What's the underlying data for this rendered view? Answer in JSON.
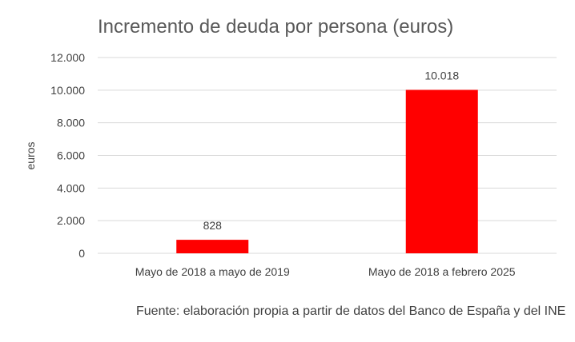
{
  "chart_data": {
    "type": "bar",
    "title": "Incremento de deuda por persona (euros)",
    "xlabel": "",
    "ylabel": "euros",
    "categories": [
      "Mayo de 2018 a mayo de 2019",
      "Mayo de 2018 a febrero 2025"
    ],
    "values": [
      828,
      10018
    ],
    "data_labels": [
      "828",
      "10.018"
    ],
    "ylim": [
      0,
      12000
    ],
    "yticks": [
      0,
      2000,
      4000,
      6000,
      8000,
      10000,
      12000
    ],
    "ytick_labels": [
      "0",
      "2.000",
      "4.000",
      "6.000",
      "8.000",
      "10.000",
      "12.000"
    ],
    "grid": true,
    "legend": "none",
    "bar_color": "#ff0000"
  },
  "source": "Fuente: elaboración propia a partir de datos del Banco de España y del INE"
}
